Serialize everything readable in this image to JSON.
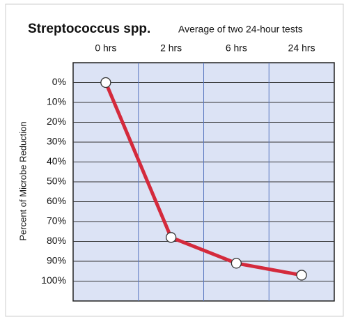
{
  "chart_data": {
    "type": "line",
    "title": "Streptococcus spp.",
    "subtitle": "Average of two 24-hour tests",
    "y_label": "Percent of Microbe Reduction",
    "categories": [
      "0 hrs",
      "2 hrs",
      "6 hrs",
      "24 hrs"
    ],
    "series": [
      {
        "name": "Streptococcus spp.",
        "color": "#d42a3c",
        "values": [
          0,
          78,
          91,
          97
        ]
      }
    ],
    "ylim": [
      110,
      -10
    ],
    "inverted": true,
    "yticks": [
      {
        "value": 0,
        "label": "0%"
      },
      {
        "value": 10,
        "label": "10%"
      },
      {
        "value": 20,
        "label": "20%"
      },
      {
        "value": 30,
        "label": "30%"
      },
      {
        "value": 40,
        "label": "40%"
      },
      {
        "value": 50,
        "label": "50%"
      },
      {
        "value": 60,
        "label": "60%"
      },
      {
        "value": 70,
        "label": "70%"
      },
      {
        "value": 80,
        "label": "80%"
      },
      {
        "value": 90,
        "label": "90%"
      },
      {
        "value": 100,
        "label": "100%"
      }
    ],
    "grid": true
  }
}
